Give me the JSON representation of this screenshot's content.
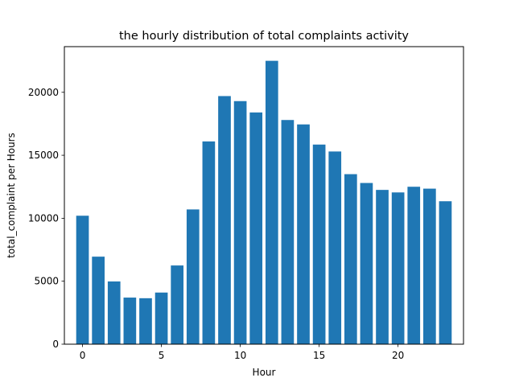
{
  "chart_data": {
    "type": "bar",
    "title": "the hourly distribution of total complaints activity",
    "xlabel": "Hour",
    "ylabel": "total_complaint per Hours",
    "categories": [
      0,
      1,
      2,
      3,
      4,
      5,
      6,
      7,
      8,
      9,
      10,
      11,
      12,
      13,
      14,
      15,
      16,
      17,
      18,
      19,
      20,
      21,
      22,
      23
    ],
    "values": [
      10200,
      6950,
      4980,
      3700,
      3650,
      4100,
      6250,
      10700,
      16100,
      19700,
      19300,
      18400,
      22500,
      17800,
      17450,
      15850,
      15300,
      13500,
      12800,
      12250,
      12050,
      12500,
      12350,
      11350
    ],
    "xlim": [
      -1.15,
      24.15
    ],
    "ylim": [
      0,
      23625
    ],
    "xticks": [
      0,
      5,
      10,
      15,
      20
    ],
    "yticks": [
      0,
      5000,
      10000,
      15000,
      20000
    ],
    "bar_color": "#1f77b4",
    "grid": false,
    "legend": "none"
  }
}
